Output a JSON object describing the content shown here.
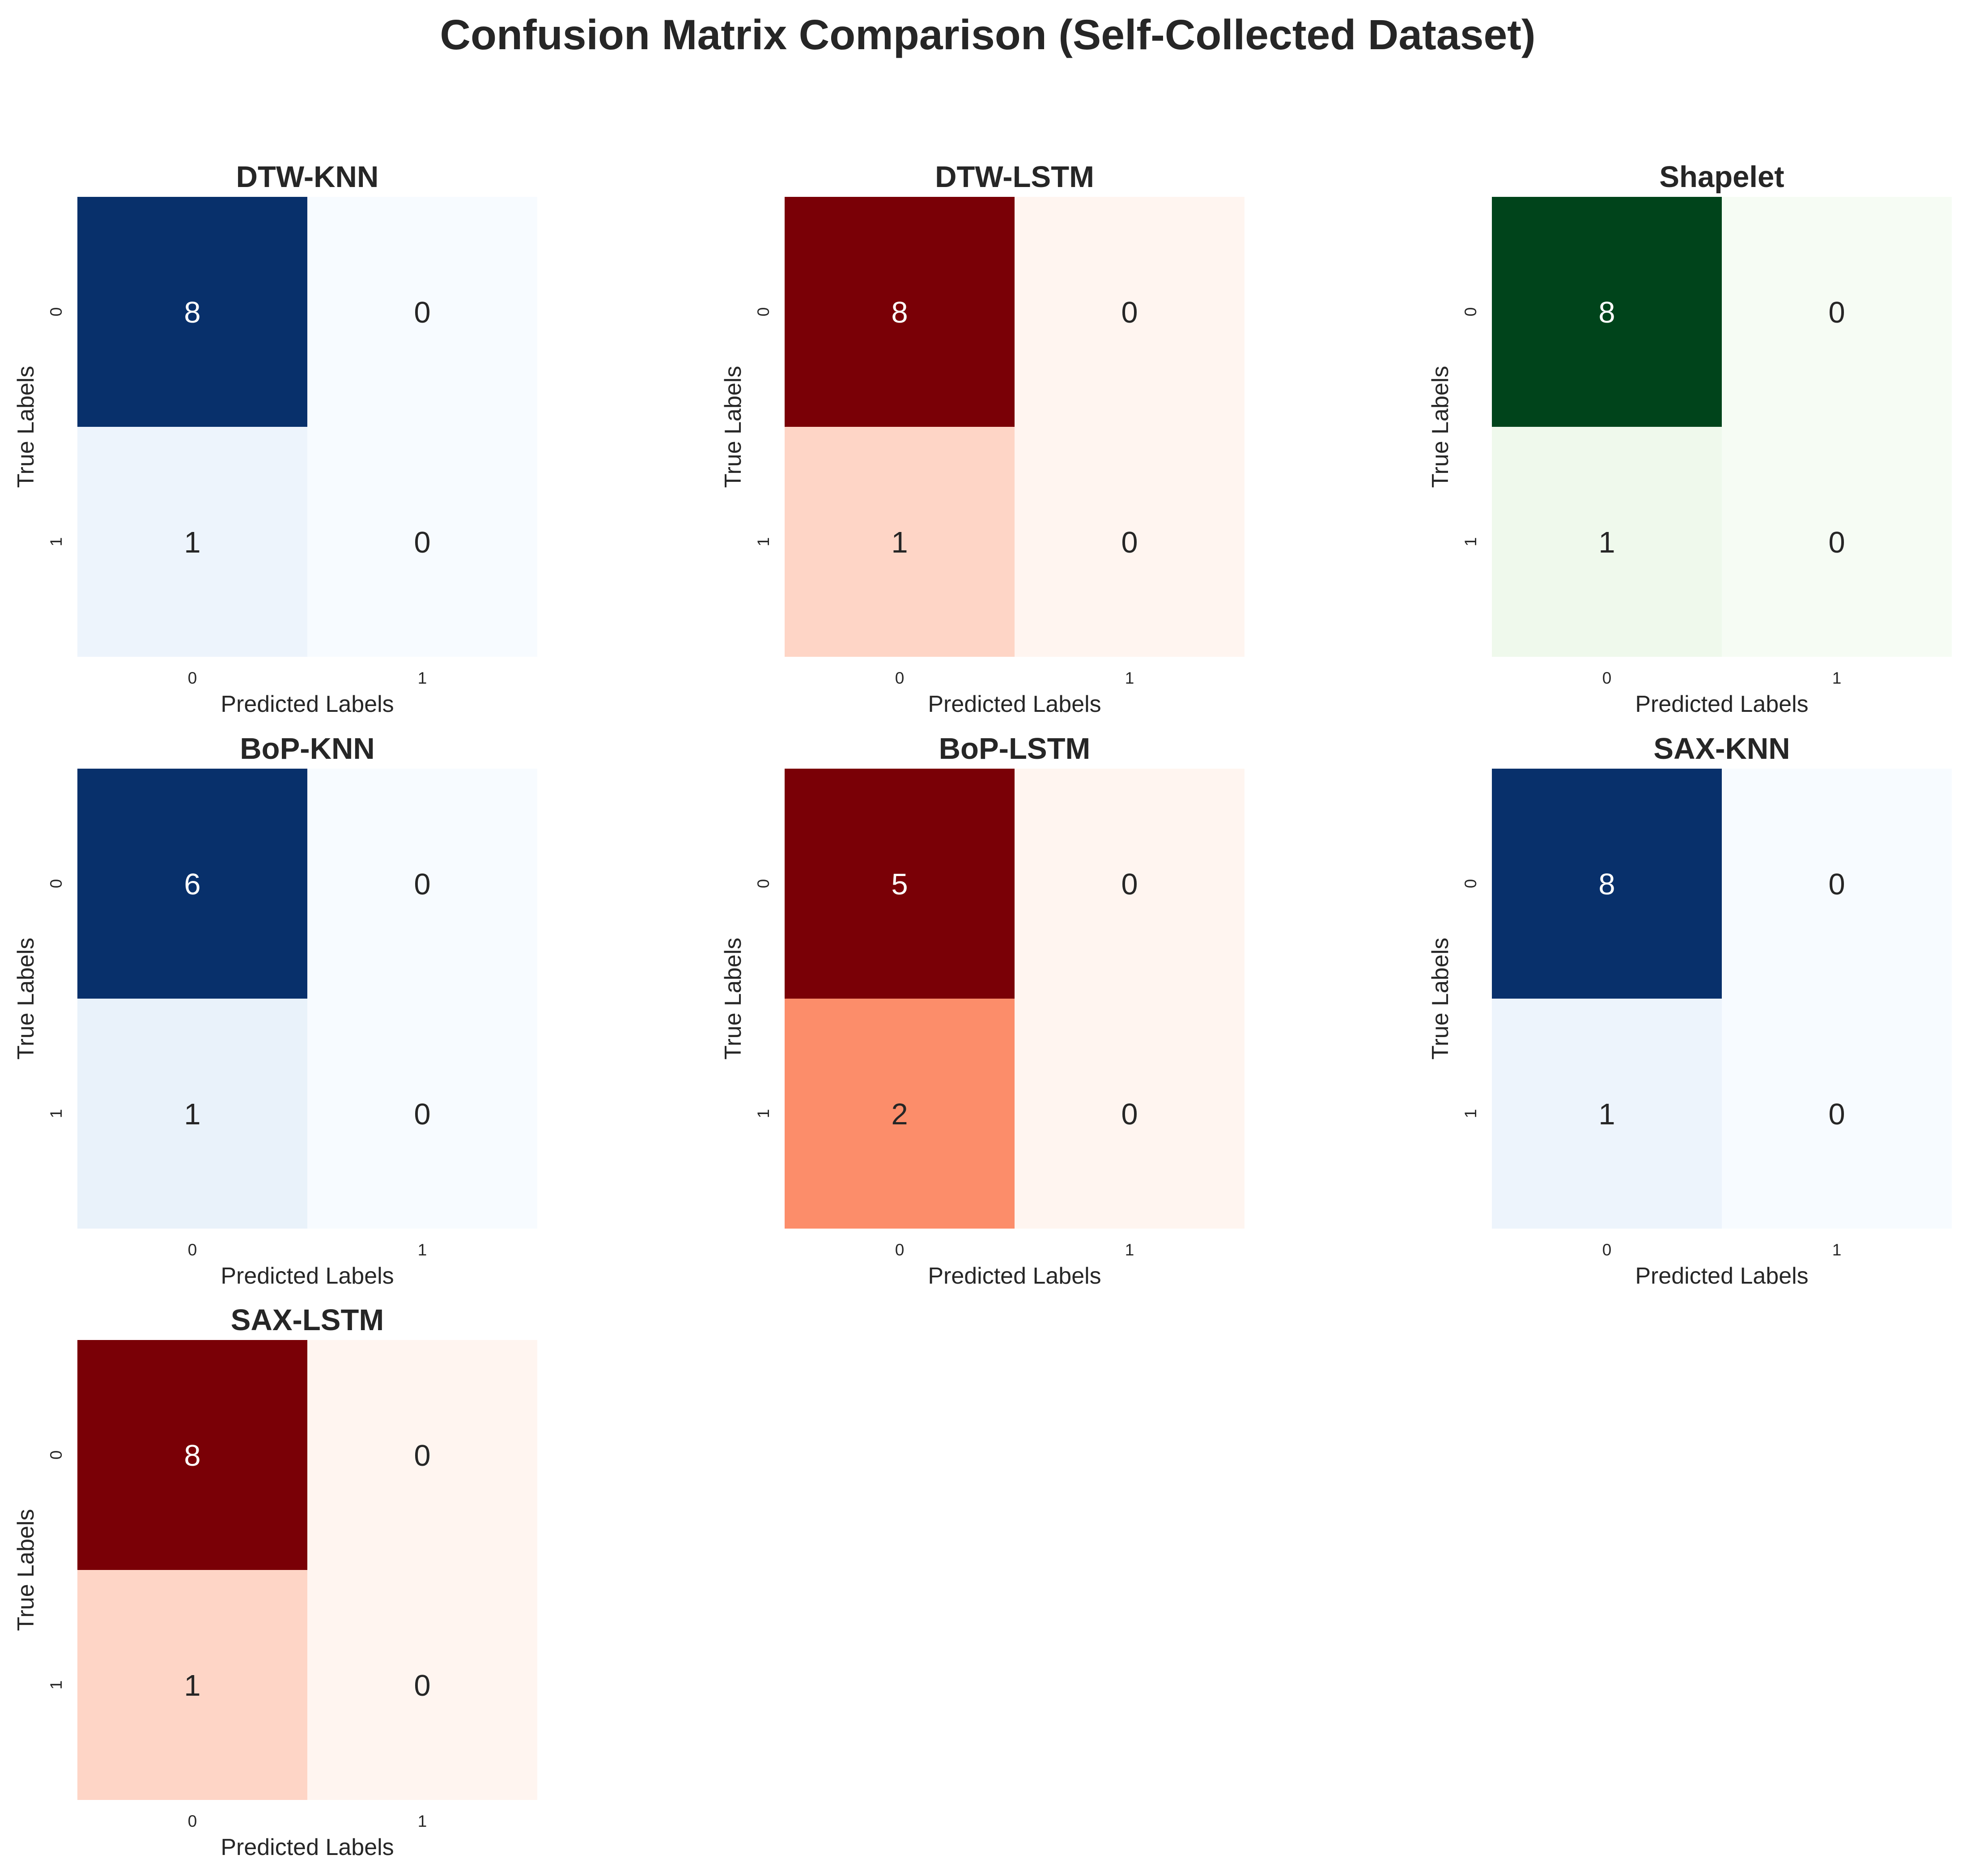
{
  "chart_data": {
    "title": "Confusion Matrix Comparison (Self-Collected Dataset)",
    "type": "heatmap",
    "xlabel": "Predicted Labels",
    "ylabel": "True Labels",
    "x_ticks": [
      "0",
      "1"
    ],
    "y_ticks": [
      "0",
      "1"
    ],
    "panels": [
      {
        "title": "DTW-KNN",
        "colormap": "Blues",
        "matrix": [
          [
            8,
            0
          ],
          [
            1,
            0
          ]
        ]
      },
      {
        "title": "DTW-LSTM",
        "colormap": "Reds",
        "matrix": [
          [
            8,
            0
          ],
          [
            1,
            0
          ]
        ]
      },
      {
        "title": "Shapelet",
        "colormap": "Greens",
        "matrix": [
          [
            8,
            0
          ],
          [
            1,
            0
          ]
        ]
      },
      {
        "title": "BoP-KNN",
        "colormap": "Blues",
        "matrix": [
          [
            6,
            0
          ],
          [
            1,
            0
          ]
        ]
      },
      {
        "title": "BoP-LSTM",
        "colormap": "Reds",
        "matrix": [
          [
            5,
            0
          ],
          [
            2,
            0
          ]
        ]
      },
      {
        "title": "SAX-KNN",
        "colormap": "Blues",
        "matrix": [
          [
            8,
            0
          ],
          [
            1,
            0
          ]
        ]
      },
      {
        "title": "SAX-LSTM",
        "colormap": "Reds",
        "matrix": [
          [
            8,
            0
          ],
          [
            1,
            0
          ]
        ]
      }
    ]
  },
  "colors": {
    "Blues": {
      "low": "#f7fbff",
      "mid": "#d6e6f4",
      "high": "#08306b"
    },
    "Reds": {
      "low": "#fff5f0",
      "mid": "#fc8d6a",
      "high": "#7a0006"
    },
    "Greens": {
      "low": "#f6fcf4",
      "mid": "#dff2da",
      "high": "#00441b"
    },
    "text_dark": "#262626",
    "text_light": "#ffffff"
  }
}
